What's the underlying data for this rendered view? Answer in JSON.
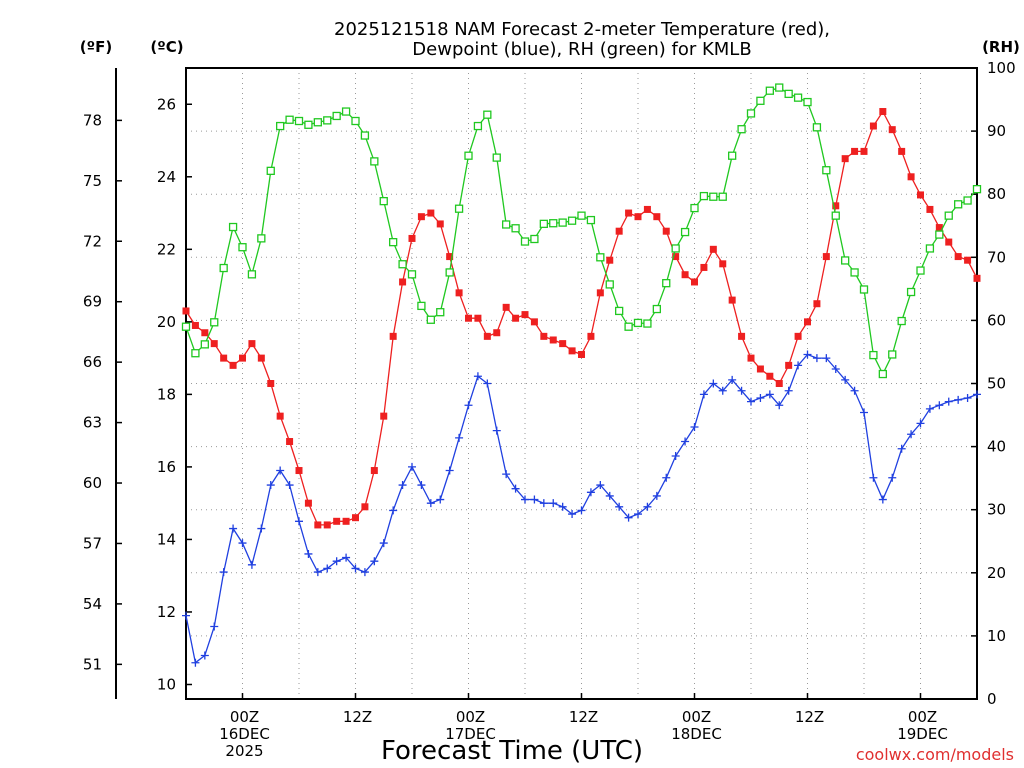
{
  "chart_data": {
    "type": "line",
    "title_line1": "2025121518 NAM Forecast 2-meter Temperature (red),",
    "title_line2": "Dewpoint (blue), RH (green) for KMLB",
    "xlabel": "Forecast Time (UTC)",
    "credit": "coolwx.com/models",
    "units": {
      "fahrenheit": "(ºF)",
      "celsius": "(ºC)",
      "rh": "(RH)"
    },
    "celsius_axis": {
      "range": [
        9.6,
        27.0
      ],
      "ticks": [
        10,
        12,
        14,
        16,
        18,
        20,
        22,
        24,
        26
      ]
    },
    "fahrenheit_ticks": [
      51,
      54,
      57,
      60,
      63,
      66,
      69,
      72,
      75,
      78
    ],
    "rh_axis": {
      "range": [
        0,
        100
      ],
      "ticks": [
        0,
        10,
        20,
        30,
        40,
        50,
        60,
        70,
        80,
        90,
        100
      ]
    },
    "hour_range": [
      -6,
      78
    ],
    "x_ticks": [
      {
        "hour": 0,
        "lines": [
          "00Z",
          "16DEC",
          "2025"
        ]
      },
      {
        "hour": 12,
        "lines": [
          "12Z"
        ]
      },
      {
        "hour": 24,
        "lines": [
          "00Z",
          "17DEC"
        ]
      },
      {
        "hour": 36,
        "lines": [
          "12Z"
        ]
      },
      {
        "hour": 48,
        "lines": [
          "00Z",
          "18DEC"
        ]
      },
      {
        "hour": 60,
        "lines": [
          "12Z"
        ]
      },
      {
        "hour": 72,
        "lines": [
          "00Z",
          "19DEC"
        ]
      }
    ],
    "series": [
      {
        "name": "Temperature",
        "unit": "C",
        "color": "#ee2020",
        "marker": "filled-square",
        "values": [
          20.3,
          19.9,
          19.7,
          19.4,
          19.0,
          18.8,
          19.0,
          19.4,
          19.0,
          18.3,
          17.4,
          16.7,
          15.9,
          15.0,
          14.4,
          14.4,
          14.5,
          14.5,
          14.6,
          14.9,
          15.9,
          17.4,
          19.6,
          21.1,
          22.3,
          22.9,
          23.0,
          22.7,
          21.8,
          20.8,
          20.1,
          20.1,
          19.6,
          19.7,
          20.4,
          20.1,
          20.2,
          20.0,
          19.6,
          19.5,
          19.4,
          19.2,
          19.1,
          19.6,
          20.8,
          21.7,
          22.5,
          23.0,
          22.9,
          23.1,
          22.9,
          22.5,
          21.8,
          21.3,
          21.1,
          21.5,
          22.0,
          21.6,
          20.6,
          19.6,
          19.0,
          18.7,
          18.5,
          18.3,
          18.8,
          19.6,
          20.0,
          20.5,
          21.8,
          23.2,
          24.5,
          24.7,
          24.7,
          25.4,
          25.8,
          25.3,
          24.7,
          24.0,
          23.5,
          23.1,
          22.6,
          22.2,
          21.8,
          21.7,
          21.2
        ]
      },
      {
        "name": "Dewpoint",
        "unit": "C",
        "color": "#2040e0",
        "marker": "plus",
        "values": [
          11.9,
          10.6,
          10.8,
          11.6,
          13.1,
          14.3,
          13.9,
          13.3,
          14.3,
          15.5,
          15.9,
          15.5,
          14.5,
          13.6,
          13.1,
          13.2,
          13.4,
          13.5,
          13.2,
          13.1,
          13.4,
          13.9,
          14.8,
          15.5,
          16.0,
          15.5,
          15.0,
          15.1,
          15.9,
          16.8,
          17.7,
          18.5,
          18.3,
          17.0,
          15.8,
          15.4,
          15.1,
          15.1,
          15.0,
          15.0,
          14.9,
          14.7,
          14.8,
          15.3,
          15.5,
          15.2,
          14.9,
          14.6,
          14.7,
          14.9,
          15.2,
          15.7,
          16.3,
          16.7,
          17.1,
          18.0,
          18.3,
          18.1,
          18.4,
          18.1,
          17.8,
          17.9,
          18.0,
          17.7,
          18.1,
          18.8,
          19.1,
          19.0,
          19.0,
          18.7,
          18.4,
          18.1,
          17.5,
          15.7,
          15.1,
          15.7,
          16.5,
          16.9,
          17.2,
          17.6,
          17.7,
          17.8,
          17.85,
          17.9,
          18.0
        ]
      },
      {
        "name": "RH",
        "unit": "%",
        "color": "#20c820",
        "marker": "open-square",
        "values": [
          59.0,
          54.8,
          56.2,
          59.7,
          68.3,
          74.8,
          71.6,
          67.3,
          73.0,
          83.7,
          90.8,
          91.8,
          91.6,
          91.0,
          91.4,
          91.7,
          92.4,
          93.1,
          91.6,
          89.3,
          85.2,
          78.9,
          72.4,
          68.9,
          67.3,
          62.3,
          60.1,
          61.3,
          67.6,
          77.7,
          86.1,
          90.8,
          92.6,
          85.8,
          75.2,
          74.6,
          72.5,
          72.9,
          75.3,
          75.4,
          75.5,
          75.8,
          76.6,
          75.9,
          70.0,
          65.7,
          61.5,
          59.0,
          59.6,
          59.5,
          61.8,
          65.9,
          71.4,
          74.0,
          77.8,
          79.7,
          79.6,
          79.6,
          86.1,
          90.3,
          92.8,
          94.8,
          96.4,
          96.9,
          95.9,
          95.3,
          94.6,
          90.6,
          83.8,
          76.6,
          69.5,
          67.6,
          64.9,
          54.5,
          51.5,
          54.6,
          59.9,
          64.5,
          67.9,
          71.4,
          73.6,
          76.6,
          78.4,
          79.0,
          80.8
        ]
      }
    ]
  }
}
